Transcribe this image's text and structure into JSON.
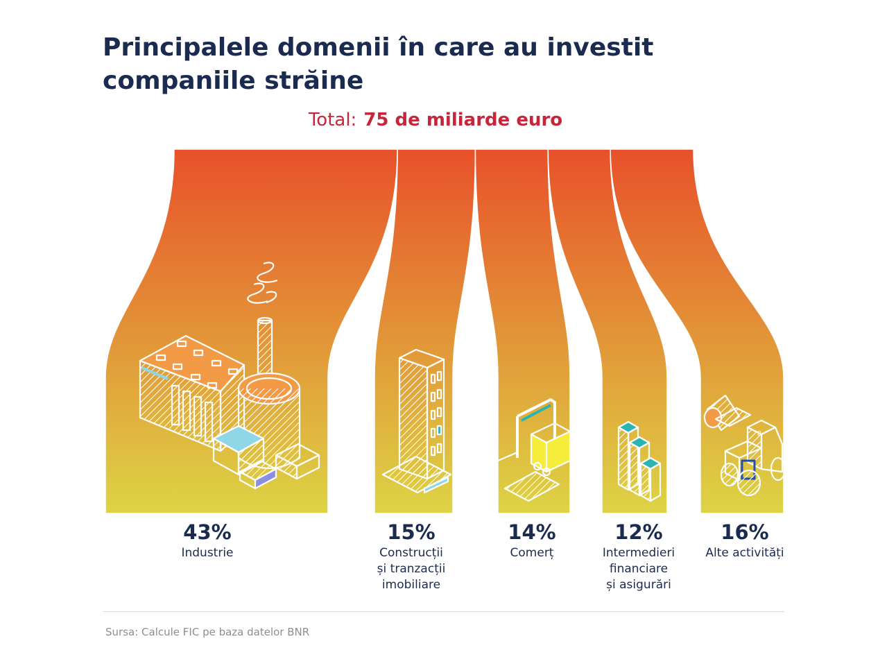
{
  "header": {
    "title": "Principalele domenii în care au investit companiile străine",
    "total_label": "Total:",
    "total_value": "75 de miliarde euro"
  },
  "chart_data": {
    "type": "area",
    "title": "Principalele domenii în care au investit companiile străine",
    "subtitle": "Total: 75 de miliarde euro",
    "unit": "%",
    "categories": [
      [
        "Industrie"
      ],
      [
        "Construcții",
        "și tranzacții",
        "imobiliare"
      ],
      [
        "Comerț"
      ],
      [
        "Intermedieri",
        "financiare",
        "și asigurări"
      ],
      [
        "Alte activități"
      ]
    ],
    "values": [
      43,
      15,
      14,
      12,
      16
    ],
    "value_labels": [
      "43%",
      "15%",
      "14%",
      "12%",
      "16%"
    ],
    "icons": [
      "factory-icon",
      "skyscraper-icon",
      "truck-icon",
      "finance-stack-icon",
      "tractor-icon"
    ],
    "colors": {
      "gradient_top": "#e8512a",
      "gradient_bottom": "#ddd445",
      "illustration": "#ffffff",
      "accent_teal": "#2cb5b0",
      "accent_blue": "#8fd7e6",
      "accent_yellow": "#f5ec3b",
      "accent_orange": "#f29a45"
    }
  },
  "footer": {
    "source": "Sursa: Calcule FIC pe baza datelor BNR"
  }
}
